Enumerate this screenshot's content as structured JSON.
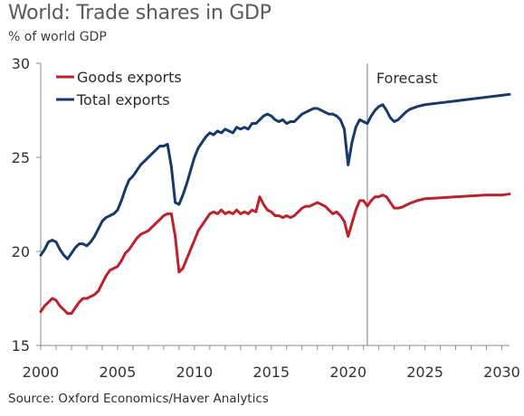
{
  "title": "World: Trade shares in GDP",
  "subtitle": "% of world GDP",
  "source": "Source: Oxford Economics/Haver Analytics",
  "chart_data": {
    "type": "line",
    "xlim": [
      2000,
      2030.5
    ],
    "ylim": [
      15,
      30
    ],
    "xticks": [
      "2000",
      "2005",
      "2010",
      "2015",
      "2020",
      "2025",
      "2030"
    ],
    "yticks": [
      "15",
      "20",
      "25",
      "30"
    ],
    "grid": false,
    "legend_position": "top-left",
    "annotation": {
      "text": "Forecast",
      "x": 2021.25
    },
    "series": [
      {
        "name": "Goods exports",
        "color": "#c0202a",
        "points": [
          [
            2000.0,
            16.8
          ],
          [
            2000.25,
            17.1
          ],
          [
            2000.5,
            17.3
          ],
          [
            2000.75,
            17.5
          ],
          [
            2001.0,
            17.4
          ],
          [
            2001.25,
            17.1
          ],
          [
            2001.5,
            16.9
          ],
          [
            2001.75,
            16.7
          ],
          [
            2002.0,
            16.7
          ],
          [
            2002.25,
            17.0
          ],
          [
            2002.5,
            17.3
          ],
          [
            2002.75,
            17.5
          ],
          [
            2003.0,
            17.5
          ],
          [
            2003.25,
            17.6
          ],
          [
            2003.5,
            17.7
          ],
          [
            2003.75,
            17.9
          ],
          [
            2004.0,
            18.3
          ],
          [
            2004.25,
            18.7
          ],
          [
            2004.5,
            19.0
          ],
          [
            2004.75,
            19.1
          ],
          [
            2005.0,
            19.2
          ],
          [
            2005.25,
            19.5
          ],
          [
            2005.5,
            19.9
          ],
          [
            2005.75,
            20.1
          ],
          [
            2006.0,
            20.4
          ],
          [
            2006.25,
            20.7
          ],
          [
            2006.5,
            20.9
          ],
          [
            2006.75,
            21.0
          ],
          [
            2007.0,
            21.1
          ],
          [
            2007.25,
            21.3
          ],
          [
            2007.5,
            21.5
          ],
          [
            2007.75,
            21.7
          ],
          [
            2008.0,
            21.9
          ],
          [
            2008.25,
            22.0
          ],
          [
            2008.5,
            22.0
          ],
          [
            2008.75,
            20.8
          ],
          [
            2009.0,
            18.9
          ],
          [
            2009.25,
            19.1
          ],
          [
            2009.5,
            19.6
          ],
          [
            2009.75,
            20.1
          ],
          [
            2010.0,
            20.6
          ],
          [
            2010.25,
            21.1
          ],
          [
            2010.5,
            21.4
          ],
          [
            2010.75,
            21.7
          ],
          [
            2011.0,
            22.0
          ],
          [
            2011.25,
            22.1
          ],
          [
            2011.5,
            22.0
          ],
          [
            2011.75,
            22.2
          ],
          [
            2012.0,
            22.0
          ],
          [
            2012.25,
            22.1
          ],
          [
            2012.5,
            22.0
          ],
          [
            2012.75,
            22.2
          ],
          [
            2013.0,
            22.0
          ],
          [
            2013.25,
            22.1
          ],
          [
            2013.5,
            22.0
          ],
          [
            2013.75,
            22.2
          ],
          [
            2014.0,
            22.1
          ],
          [
            2014.25,
            22.9
          ],
          [
            2014.5,
            22.5
          ],
          [
            2014.75,
            22.2
          ],
          [
            2015.0,
            22.1
          ],
          [
            2015.25,
            21.9
          ],
          [
            2015.5,
            21.9
          ],
          [
            2015.75,
            21.8
          ],
          [
            2016.0,
            21.9
          ],
          [
            2016.25,
            21.8
          ],
          [
            2016.5,
            21.9
          ],
          [
            2016.75,
            22.1
          ],
          [
            2017.0,
            22.3
          ],
          [
            2017.25,
            22.4
          ],
          [
            2017.5,
            22.4
          ],
          [
            2017.75,
            22.5
          ],
          [
            2018.0,
            22.6
          ],
          [
            2018.25,
            22.5
          ],
          [
            2018.5,
            22.4
          ],
          [
            2018.75,
            22.2
          ],
          [
            2019.0,
            22.0
          ],
          [
            2019.25,
            22.1
          ],
          [
            2019.5,
            21.9
          ],
          [
            2019.75,
            21.6
          ],
          [
            2020.0,
            20.8
          ],
          [
            2020.25,
            21.5
          ],
          [
            2020.5,
            22.2
          ],
          [
            2020.75,
            22.7
          ],
          [
            2021.0,
            22.7
          ],
          [
            2021.25,
            22.4
          ],
          [
            2021.5,
            22.7
          ],
          [
            2021.75,
            22.9
          ],
          [
            2022.0,
            22.9
          ],
          [
            2022.25,
            23.0
          ],
          [
            2022.5,
            22.9
          ],
          [
            2022.75,
            22.6
          ],
          [
            2023.0,
            22.3
          ],
          [
            2023.25,
            22.3
          ],
          [
            2023.5,
            22.35
          ],
          [
            2023.75,
            22.45
          ],
          [
            2024.0,
            22.55
          ],
          [
            2024.5,
            22.7
          ],
          [
            2025.0,
            22.8
          ],
          [
            2026.0,
            22.85
          ],
          [
            2027.0,
            22.9
          ],
          [
            2028.0,
            22.95
          ],
          [
            2029.0,
            23.0
          ],
          [
            2030.0,
            23.0
          ],
          [
            2030.5,
            23.05
          ]
        ]
      },
      {
        "name": "Total exports",
        "color": "#173a6d",
        "points": [
          [
            2000.0,
            19.8
          ],
          [
            2000.25,
            20.1
          ],
          [
            2000.5,
            20.5
          ],
          [
            2000.75,
            20.6
          ],
          [
            2001.0,
            20.5
          ],
          [
            2001.25,
            20.1
          ],
          [
            2001.5,
            19.8
          ],
          [
            2001.75,
            19.6
          ],
          [
            2002.0,
            19.9
          ],
          [
            2002.25,
            20.2
          ],
          [
            2002.5,
            20.4
          ],
          [
            2002.75,
            20.4
          ],
          [
            2003.0,
            20.3
          ],
          [
            2003.25,
            20.5
          ],
          [
            2003.5,
            20.8
          ],
          [
            2003.75,
            21.2
          ],
          [
            2004.0,
            21.6
          ],
          [
            2004.25,
            21.8
          ],
          [
            2004.5,
            21.9
          ],
          [
            2004.75,
            22.0
          ],
          [
            2005.0,
            22.2
          ],
          [
            2005.25,
            22.7
          ],
          [
            2005.5,
            23.3
          ],
          [
            2005.75,
            23.8
          ],
          [
            2006.0,
            24.0
          ],
          [
            2006.25,
            24.3
          ],
          [
            2006.5,
            24.6
          ],
          [
            2006.75,
            24.8
          ],
          [
            2007.0,
            25.0
          ],
          [
            2007.25,
            25.2
          ],
          [
            2007.5,
            25.4
          ],
          [
            2007.75,
            25.6
          ],
          [
            2008.0,
            25.6
          ],
          [
            2008.25,
            25.7
          ],
          [
            2008.5,
            24.5
          ],
          [
            2008.75,
            22.6
          ],
          [
            2009.0,
            22.5
          ],
          [
            2009.25,
            23.0
          ],
          [
            2009.5,
            23.6
          ],
          [
            2009.75,
            24.3
          ],
          [
            2010.0,
            25.0
          ],
          [
            2010.25,
            25.5
          ],
          [
            2010.5,
            25.8
          ],
          [
            2010.75,
            26.1
          ],
          [
            2011.0,
            26.3
          ],
          [
            2011.25,
            26.2
          ],
          [
            2011.5,
            26.4
          ],
          [
            2011.75,
            26.3
          ],
          [
            2012.0,
            26.5
          ],
          [
            2012.25,
            26.4
          ],
          [
            2012.5,
            26.3
          ],
          [
            2012.75,
            26.6
          ],
          [
            2013.0,
            26.5
          ],
          [
            2013.25,
            26.6
          ],
          [
            2013.5,
            26.5
          ],
          [
            2013.75,
            26.8
          ],
          [
            2014.0,
            26.8
          ],
          [
            2014.25,
            27.0
          ],
          [
            2014.5,
            27.2
          ],
          [
            2014.75,
            27.3
          ],
          [
            2015.0,
            27.2
          ],
          [
            2015.25,
            27.0
          ],
          [
            2015.5,
            26.9
          ],
          [
            2015.75,
            27.0
          ],
          [
            2016.0,
            26.8
          ],
          [
            2016.25,
            26.9
          ],
          [
            2016.5,
            26.9
          ],
          [
            2016.75,
            27.1
          ],
          [
            2017.0,
            27.3
          ],
          [
            2017.25,
            27.4
          ],
          [
            2017.5,
            27.5
          ],
          [
            2017.75,
            27.6
          ],
          [
            2018.0,
            27.6
          ],
          [
            2018.25,
            27.5
          ],
          [
            2018.5,
            27.4
          ],
          [
            2018.75,
            27.3
          ],
          [
            2019.0,
            27.3
          ],
          [
            2019.25,
            27.2
          ],
          [
            2019.5,
            27.0
          ],
          [
            2019.75,
            26.5
          ],
          [
            2020.0,
            24.6
          ],
          [
            2020.25,
            25.8
          ],
          [
            2020.5,
            26.6
          ],
          [
            2020.75,
            27.0
          ],
          [
            2021.0,
            26.9
          ],
          [
            2021.25,
            26.8
          ],
          [
            2021.5,
            27.2
          ],
          [
            2021.75,
            27.5
          ],
          [
            2022.0,
            27.7
          ],
          [
            2022.25,
            27.8
          ],
          [
            2022.5,
            27.5
          ],
          [
            2022.75,
            27.1
          ],
          [
            2023.0,
            26.9
          ],
          [
            2023.25,
            27.0
          ],
          [
            2023.5,
            27.2
          ],
          [
            2023.75,
            27.4
          ],
          [
            2024.0,
            27.55
          ],
          [
            2024.5,
            27.7
          ],
          [
            2025.0,
            27.8
          ],
          [
            2026.0,
            27.9
          ],
          [
            2027.0,
            28.0
          ],
          [
            2028.0,
            28.1
          ],
          [
            2029.0,
            28.2
          ],
          [
            2030.0,
            28.3
          ],
          [
            2030.5,
            28.35
          ]
        ]
      }
    ]
  }
}
